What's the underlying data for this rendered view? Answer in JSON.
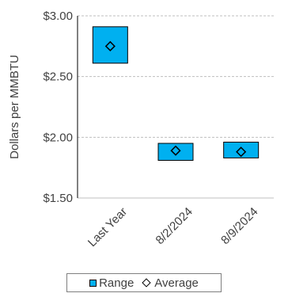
{
  "chart_data": {
    "type": "bar",
    "ylabel": "Dollars per MMBTU",
    "ylim": [
      1.5,
      3.0
    ],
    "yticks": [
      {
        "value": 1.5,
        "label": "$1.50"
      },
      {
        "value": 2.0,
        "label": "$2.00"
      },
      {
        "value": 2.5,
        "label": "$2.50"
      },
      {
        "value": 3.0,
        "label": "$3.00"
      }
    ],
    "categories": [
      "Last Year",
      "8/2/2024",
      "8/9/2024"
    ],
    "series": [
      {
        "name": "Range",
        "low": [
          2.61,
          1.81,
          1.83
        ],
        "high": [
          2.91,
          1.95,
          1.96
        ]
      },
      {
        "name": "Average",
        "values": [
          2.75,
          1.89,
          1.88
        ]
      }
    ],
    "grid": true,
    "legend": "bottom",
    "colors": {
      "range_fill": "#00b0f0",
      "outline": "#000000",
      "grid": "#bfbfbf",
      "text": "#404040"
    }
  }
}
